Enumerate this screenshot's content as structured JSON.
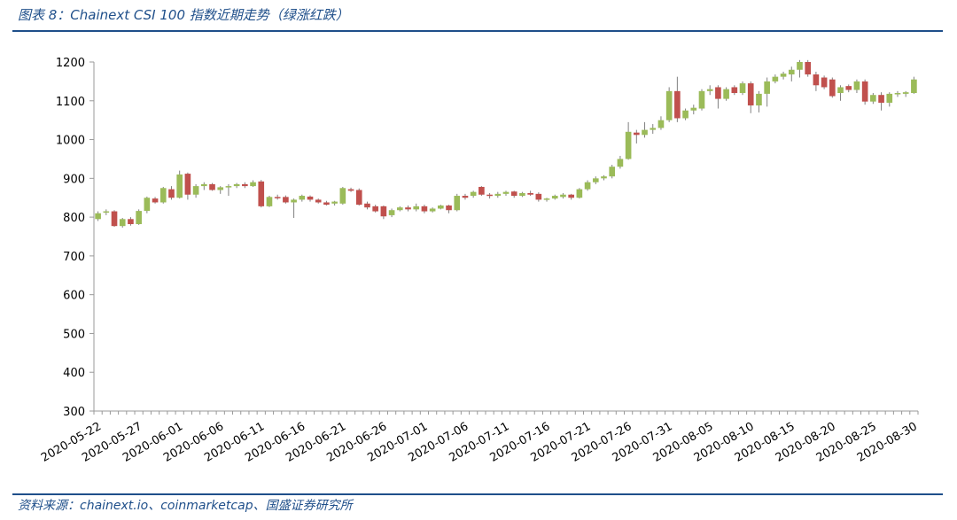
{
  "header": {
    "title": "图表 8：Chainext CSI 100 指数近期走势（绿涨红跌）"
  },
  "footer": {
    "source": "资料来源：chainext.io、coinmarketcap、国盛证券研究所"
  },
  "colors": {
    "up": "#9bbb59",
    "down": "#c0504d",
    "rule": "#1f4f8a",
    "axis": "#999999"
  },
  "chart_data": {
    "type": "candlestick",
    "title": "",
    "xlabel": "",
    "ylabel": "",
    "ylim": [
      300,
      1200
    ],
    "yticks": [
      300,
      400,
      500,
      600,
      700,
      800,
      900,
      1000,
      1100,
      1200
    ],
    "grid": false,
    "legend": "none",
    "xtick_labels": [
      "2020-05-22",
      "2020-05-27",
      "2020-06-01",
      "2020-06-06",
      "2020-06-11",
      "2020-06-16",
      "2020-06-21",
      "2020-06-26",
      "2020-07-01",
      "2020-07-06",
      "2020-07-11",
      "2020-07-16",
      "2020-07-21",
      "2020-07-26",
      "2020-07-31",
      "2020-08-05",
      "2020-08-10",
      "2020-08-15",
      "2020-08-20",
      "2020-08-25",
      "2020-08-30"
    ],
    "candles": [
      {
        "date": "2020-05-22",
        "open": 795,
        "high": 815,
        "low": 790,
        "close": 810
      },
      {
        "date": "2020-05-23",
        "open": 812,
        "high": 820,
        "low": 805,
        "close": 815
      },
      {
        "date": "2020-05-24",
        "open": 815,
        "high": 818,
        "low": 775,
        "close": 777
      },
      {
        "date": "2020-05-25",
        "open": 777,
        "high": 798,
        "low": 773,
        "close": 795
      },
      {
        "date": "2020-05-26",
        "open": 795,
        "high": 800,
        "low": 778,
        "close": 782
      },
      {
        "date": "2020-05-27",
        "open": 782,
        "high": 820,
        "low": 780,
        "close": 816
      },
      {
        "date": "2020-05-28",
        "open": 816,
        "high": 853,
        "low": 810,
        "close": 850
      },
      {
        "date": "2020-05-29",
        "open": 848,
        "high": 852,
        "low": 835,
        "close": 838
      },
      {
        "date": "2020-05-30",
        "open": 838,
        "high": 878,
        "low": 835,
        "close": 875
      },
      {
        "date": "2020-05-31",
        "open": 872,
        "high": 880,
        "low": 845,
        "close": 850
      },
      {
        "date": "2020-06-01",
        "open": 850,
        "high": 920,
        "low": 848,
        "close": 910
      },
      {
        "date": "2020-06-02",
        "open": 912,
        "high": 915,
        "low": 845,
        "close": 858
      },
      {
        "date": "2020-06-03",
        "open": 858,
        "high": 885,
        "low": 850,
        "close": 880
      },
      {
        "date": "2020-06-04",
        "open": 880,
        "high": 890,
        "low": 870,
        "close": 885
      },
      {
        "date": "2020-06-05",
        "open": 885,
        "high": 888,
        "low": 868,
        "close": 870
      },
      {
        "date": "2020-06-06",
        "open": 870,
        "high": 880,
        "low": 860,
        "close": 877
      },
      {
        "date": "2020-06-07",
        "open": 877,
        "high": 885,
        "low": 855,
        "close": 880
      },
      {
        "date": "2020-06-08",
        "open": 880,
        "high": 888,
        "low": 875,
        "close": 885
      },
      {
        "date": "2020-06-09",
        "open": 885,
        "high": 890,
        "low": 875,
        "close": 880
      },
      {
        "date": "2020-06-10",
        "open": 880,
        "high": 895,
        "low": 878,
        "close": 890
      },
      {
        "date": "2020-06-11",
        "open": 892,
        "high": 896,
        "low": 825,
        "close": 828
      },
      {
        "date": "2020-06-12",
        "open": 828,
        "high": 855,
        "low": 826,
        "close": 852
      },
      {
        "date": "2020-06-13",
        "open": 852,
        "high": 858,
        "low": 845,
        "close": 850
      },
      {
        "date": "2020-06-14",
        "open": 852,
        "high": 856,
        "low": 835,
        "close": 838
      },
      {
        "date": "2020-06-15",
        "open": 838,
        "high": 848,
        "low": 798,
        "close": 845
      },
      {
        "date": "2020-06-16",
        "open": 845,
        "high": 858,
        "low": 840,
        "close": 855
      },
      {
        "date": "2020-06-17",
        "open": 853,
        "high": 856,
        "low": 840,
        "close": 845
      },
      {
        "date": "2020-06-18",
        "open": 845,
        "high": 848,
        "low": 835,
        "close": 838
      },
      {
        "date": "2020-06-19",
        "open": 838,
        "high": 842,
        "low": 830,
        "close": 832
      },
      {
        "date": "2020-06-20",
        "open": 835,
        "high": 842,
        "low": 830,
        "close": 840
      },
      {
        "date": "2020-06-21",
        "open": 835,
        "high": 878,
        "low": 832,
        "close": 875
      },
      {
        "date": "2020-06-22",
        "open": 872,
        "high": 876,
        "low": 865,
        "close": 868
      },
      {
        "date": "2020-06-23",
        "open": 870,
        "high": 874,
        "low": 830,
        "close": 832
      },
      {
        "date": "2020-06-24",
        "open": 835,
        "high": 840,
        "low": 820,
        "close": 825
      },
      {
        "date": "2020-06-25",
        "open": 828,
        "high": 832,
        "low": 812,
        "close": 815
      },
      {
        "date": "2020-06-26",
        "open": 828,
        "high": 830,
        "low": 795,
        "close": 802
      },
      {
        "date": "2020-06-27",
        "open": 805,
        "high": 822,
        "low": 800,
        "close": 818
      },
      {
        "date": "2020-06-28",
        "open": 818,
        "high": 828,
        "low": 815,
        "close": 825
      },
      {
        "date": "2020-06-29",
        "open": 825,
        "high": 830,
        "low": 815,
        "close": 820
      },
      {
        "date": "2020-06-30",
        "open": 820,
        "high": 835,
        "low": 815,
        "close": 828
      },
      {
        "date": "2020-07-01",
        "open": 828,
        "high": 832,
        "low": 810,
        "close": 815
      },
      {
        "date": "2020-07-02",
        "open": 815,
        "high": 825,
        "low": 812,
        "close": 822
      },
      {
        "date": "2020-07-03",
        "open": 822,
        "high": 832,
        "low": 820,
        "close": 830
      },
      {
        "date": "2020-07-04",
        "open": 830,
        "high": 832,
        "low": 810,
        "close": 818
      },
      {
        "date": "2020-07-05",
        "open": 818,
        "high": 860,
        "low": 815,
        "close": 855
      },
      {
        "date": "2020-07-06",
        "open": 855,
        "high": 860,
        "low": 845,
        "close": 850
      },
      {
        "date": "2020-07-07",
        "open": 855,
        "high": 868,
        "low": 850,
        "close": 865
      },
      {
        "date": "2020-07-08",
        "open": 878,
        "high": 880,
        "low": 855,
        "close": 858
      },
      {
        "date": "2020-07-09",
        "open": 858,
        "high": 862,
        "low": 848,
        "close": 855
      },
      {
        "date": "2020-07-10",
        "open": 855,
        "high": 865,
        "low": 850,
        "close": 860
      },
      {
        "date": "2020-07-11",
        "open": 860,
        "high": 868,
        "low": 855,
        "close": 865
      },
      {
        "date": "2020-07-12",
        "open": 866,
        "high": 868,
        "low": 850,
        "close": 855
      },
      {
        "date": "2020-07-13",
        "open": 855,
        "high": 865,
        "low": 852,
        "close": 862
      },
      {
        "date": "2020-07-14",
        "open": 862,
        "high": 868,
        "low": 855,
        "close": 858
      },
      {
        "date": "2020-07-15",
        "open": 860,
        "high": 864,
        "low": 840,
        "close": 845
      },
      {
        "date": "2020-07-16",
        "open": 845,
        "high": 850,
        "low": 840,
        "close": 848
      },
      {
        "date": "2020-07-17",
        "open": 848,
        "high": 858,
        "low": 845,
        "close": 855
      },
      {
        "date": "2020-07-18",
        "open": 852,
        "high": 862,
        "low": 848,
        "close": 858
      },
      {
        "date": "2020-07-19",
        "open": 858,
        "high": 860,
        "low": 845,
        "close": 850
      },
      {
        "date": "2020-07-20",
        "open": 850,
        "high": 875,
        "low": 848,
        "close": 872
      },
      {
        "date": "2020-07-21",
        "open": 872,
        "high": 895,
        "low": 868,
        "close": 890
      },
      {
        "date": "2020-07-22",
        "open": 890,
        "high": 905,
        "low": 885,
        "close": 900
      },
      {
        "date": "2020-07-23",
        "open": 900,
        "high": 908,
        "low": 895,
        "close": 905
      },
      {
        "date": "2020-07-24",
        "open": 905,
        "high": 935,
        "low": 900,
        "close": 930
      },
      {
        "date": "2020-07-25",
        "open": 930,
        "high": 958,
        "low": 925,
        "close": 950
      },
      {
        "date": "2020-07-26",
        "open": 950,
        "high": 1045,
        "low": 948,
        "close": 1020
      },
      {
        "date": "2020-07-27",
        "open": 1018,
        "high": 1025,
        "low": 990,
        "close": 1012
      },
      {
        "date": "2020-07-28",
        "open": 1012,
        "high": 1045,
        "low": 1005,
        "close": 1025
      },
      {
        "date": "2020-07-29",
        "open": 1025,
        "high": 1040,
        "low": 1015,
        "close": 1030
      },
      {
        "date": "2020-07-30",
        "open": 1030,
        "high": 1060,
        "low": 1025,
        "close": 1050
      },
      {
        "date": "2020-07-31",
        "open": 1050,
        "high": 1135,
        "low": 1045,
        "close": 1125
      },
      {
        "date": "2020-08-01",
        "open": 1125,
        "high": 1162,
        "low": 1045,
        "close": 1055
      },
      {
        "date": "2020-08-02",
        "open": 1055,
        "high": 1080,
        "low": 1050,
        "close": 1075
      },
      {
        "date": "2020-08-03",
        "open": 1075,
        "high": 1090,
        "low": 1065,
        "close": 1082
      },
      {
        "date": "2020-08-04",
        "open": 1080,
        "high": 1130,
        "low": 1075,
        "close": 1125
      },
      {
        "date": "2020-08-05",
        "open": 1125,
        "high": 1140,
        "low": 1115,
        "close": 1130
      },
      {
        "date": "2020-08-06",
        "open": 1135,
        "high": 1140,
        "low": 1080,
        "close": 1105
      },
      {
        "date": "2020-08-07",
        "open": 1105,
        "high": 1135,
        "low": 1100,
        "close": 1130
      },
      {
        "date": "2020-08-08",
        "open": 1135,
        "high": 1140,
        "low": 1115,
        "close": 1120
      },
      {
        "date": "2020-08-09",
        "open": 1120,
        "high": 1150,
        "low": 1115,
        "close": 1145
      },
      {
        "date": "2020-08-10",
        "open": 1145,
        "high": 1150,
        "low": 1068,
        "close": 1088
      },
      {
        "date": "2020-08-11",
        "open": 1088,
        "high": 1125,
        "low": 1070,
        "close": 1118
      },
      {
        "date": "2020-08-12",
        "open": 1118,
        "high": 1160,
        "low": 1085,
        "close": 1150
      },
      {
        "date": "2020-08-13",
        "open": 1150,
        "high": 1168,
        "low": 1145,
        "close": 1162
      },
      {
        "date": "2020-08-14",
        "open": 1162,
        "high": 1175,
        "low": 1155,
        "close": 1170
      },
      {
        "date": "2020-08-15",
        "open": 1168,
        "high": 1188,
        "low": 1150,
        "close": 1180
      },
      {
        "date": "2020-08-16",
        "open": 1180,
        "high": 1205,
        "low": 1160,
        "close": 1200
      },
      {
        "date": "2020-08-17",
        "open": 1200,
        "high": 1205,
        "low": 1162,
        "close": 1168
      },
      {
        "date": "2020-08-18",
        "open": 1168,
        "high": 1175,
        "low": 1125,
        "close": 1140
      },
      {
        "date": "2020-08-19",
        "open": 1160,
        "high": 1165,
        "low": 1130,
        "close": 1135
      },
      {
        "date": "2020-08-20",
        "open": 1155,
        "high": 1160,
        "low": 1108,
        "close": 1112
      },
      {
        "date": "2020-08-21",
        "open": 1120,
        "high": 1140,
        "low": 1100,
        "close": 1135
      },
      {
        "date": "2020-08-22",
        "open": 1138,
        "high": 1142,
        "low": 1122,
        "close": 1128
      },
      {
        "date": "2020-08-23",
        "open": 1128,
        "high": 1155,
        "low": 1120,
        "close": 1150
      },
      {
        "date": "2020-08-24",
        "open": 1150,
        "high": 1155,
        "low": 1090,
        "close": 1098
      },
      {
        "date": "2020-08-25",
        "open": 1098,
        "high": 1120,
        "low": 1092,
        "close": 1115
      },
      {
        "date": "2020-08-26",
        "open": 1115,
        "high": 1122,
        "low": 1075,
        "close": 1095
      },
      {
        "date": "2020-08-27",
        "open": 1095,
        "high": 1122,
        "low": 1085,
        "close": 1118
      },
      {
        "date": "2020-08-28",
        "open": 1118,
        "high": 1125,
        "low": 1110,
        "close": 1120
      },
      {
        "date": "2020-08-29",
        "open": 1118,
        "high": 1125,
        "low": 1110,
        "close": 1122
      },
      {
        "date": "2020-08-30",
        "open": 1120,
        "high": 1162,
        "low": 1118,
        "close": 1155
      }
    ]
  }
}
